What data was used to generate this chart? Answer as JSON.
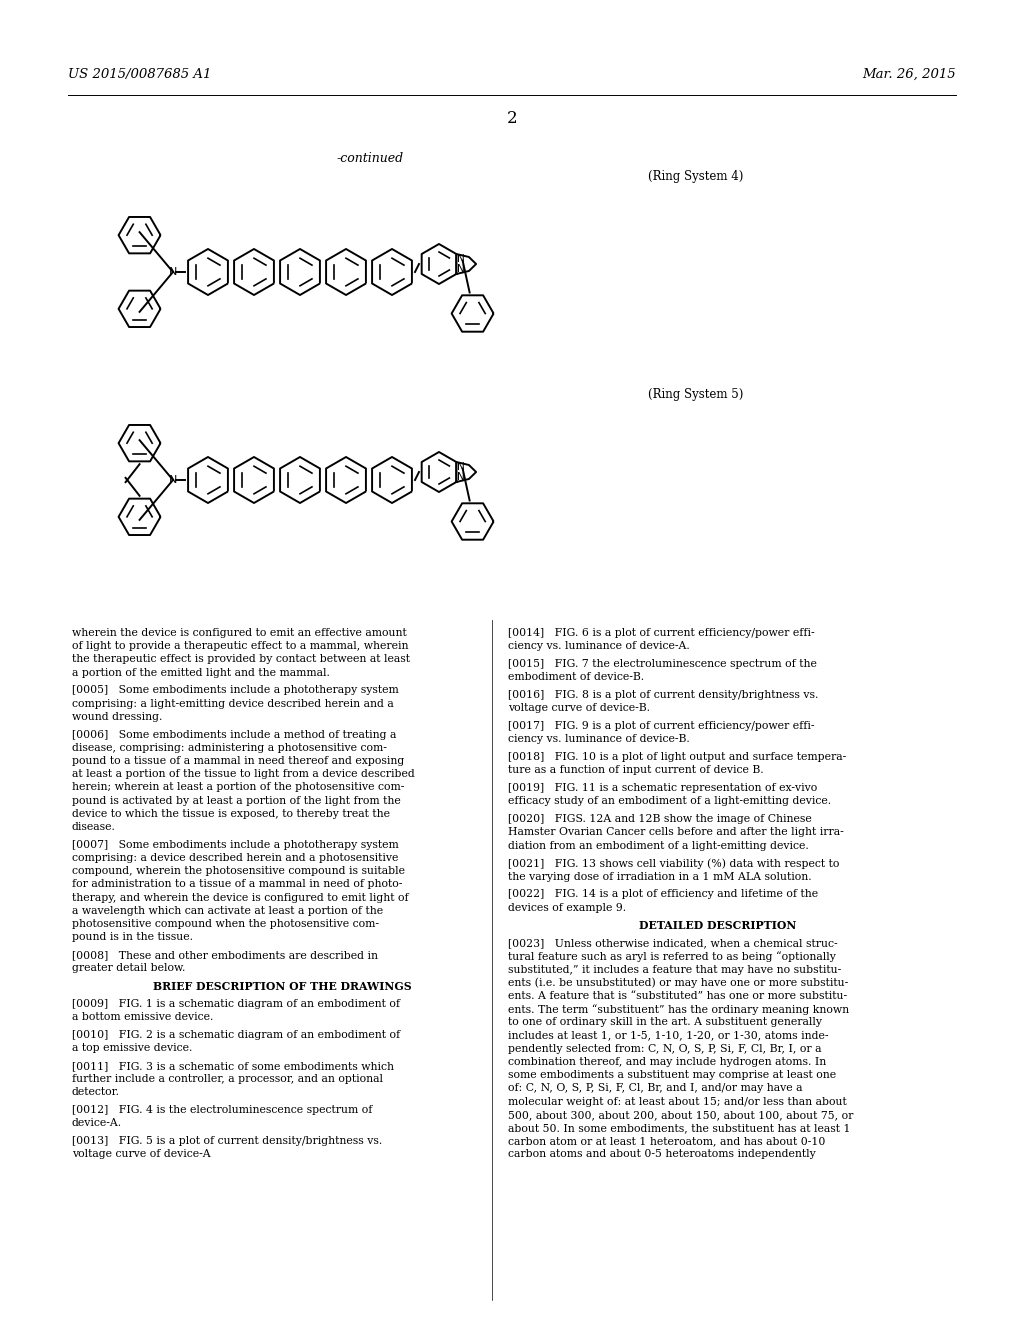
{
  "header_left": "US 2015/0087685 A1",
  "header_right": "Mar. 26, 2015",
  "page_number": "2",
  "continued_label": "-continued",
  "ring_system_4_label": "(Ring System 4)",
  "ring_system_5_label": "(Ring System 5)",
  "background_color": "#ffffff",
  "text_color": "#000000",
  "left_column_text": [
    "wherein the device is configured to emit an effective amount",
    "of light to provide a therapeutic effect to a mammal, wherein",
    "the therapeutic effect is provided by contact between at least",
    "a portion of the emitted light and the mammal.",
    "",
    "[0005]   Some embodiments include a phototherapy system",
    "comprising: a light-emitting device described herein and a",
    "wound dressing.",
    "",
    "[0006]   Some embodiments include a method of treating a",
    "disease, comprising: administering a photosensitive com-",
    "pound to a tissue of a mammal in need thereof and exposing",
    "at least a portion of the tissue to light from a device described",
    "herein; wherein at least a portion of the photosensitive com-",
    "pound is activated by at least a portion of the light from the",
    "device to which the tissue is exposed, to thereby treat the",
    "disease.",
    "",
    "[0007]   Some embodiments include a phototherapy system",
    "comprising: a device described herein and a photosensitive",
    "compound, wherein the photosensitive compound is suitable",
    "for administration to a tissue of a mammal in need of photo-",
    "therapy, and wherein the device is configured to emit light of",
    "a wavelength which can activate at least a portion of the",
    "photosensitive compound when the photosensitive com-",
    "pound is in the tissue.",
    "",
    "[0008]   These and other embodiments are described in",
    "greater detail below.",
    "",
    "BRIEF DESCRIPTION OF THE DRAWINGS",
    "",
    "[0009]   FIG. 1 is a schematic diagram of an embodiment of",
    "a bottom emissive device.",
    "",
    "[0010]   FIG. 2 is a schematic diagram of an embodiment of",
    "a top emissive device.",
    "",
    "[0011]   FIG. 3 is a schematic of some embodiments which",
    "further include a controller, a processor, and an optional",
    "detector.",
    "",
    "[0012]   FIG. 4 is the electroluminescence spectrum of",
    "device-A.",
    "",
    "[0013]   FIG. 5 is a plot of current density/brightness vs.",
    "voltage curve of device-A"
  ],
  "right_column_text": [
    "[0014]   FIG. 6 is a plot of current efficiency/power effi-",
    "ciency vs. luminance of device-A.",
    "",
    "[0015]   FIG. 7 the electroluminescence spectrum of the",
    "embodiment of device-B.",
    "",
    "[0016]   FIG. 8 is a plot of current density/brightness vs.",
    "voltage curve of device-B.",
    "",
    "[0017]   FIG. 9 is a plot of current efficiency/power effi-",
    "ciency vs. luminance of device-B.",
    "",
    "[0018]   FIG. 10 is a plot of light output and surface tempera-",
    "ture as a function of input current of device B.",
    "",
    "[0019]   FIG. 11 is a schematic representation of ex-vivo",
    "efficacy study of an embodiment of a light-emitting device.",
    "",
    "[0020]   FIGS. 12A and 12B show the image of Chinese",
    "Hamster Ovarian Cancer cells before and after the light irra-",
    "diation from an embodiment of a light-emitting device.",
    "",
    "[0021]   FIG. 13 shows cell viability (%) data with respect to",
    "the varying dose of irradiation in a 1 mM ALA solution.",
    "",
    "[0022]   FIG. 14 is a plot of efficiency and lifetime of the",
    "devices of example 9.",
    "",
    "DETAILED DESCRIPTION",
    "",
    "[0023]   Unless otherwise indicated, when a chemical struc-",
    "tural feature such as aryl is referred to as being “optionally",
    "substituted,” it includes a feature that may have no substitu-",
    "ents (i.e. be unsubstituted) or may have one or more substitu-",
    "ents. A feature that is “substituted” has one or more substitu-",
    "ents. The term “substituent” has the ordinary meaning known",
    "to one of ordinary skill in the art. A substituent generally",
    "includes at least 1, or 1-5, 1-10, 1-20, or 1-30, atoms inde-",
    "pendently selected from: C, N, O, S, P, Si, F, Cl, Br, I, or a",
    "combination thereof, and may include hydrogen atoms. In",
    "some embodiments a substituent may comprise at least one",
    "of: C, N, O, S, P, Si, F, Cl, Br, and I, and/or may have a",
    "molecular weight of: at least about 15; and/or less than about",
    "500, about 300, about 200, about 150, about 100, about 75, or",
    "about 50. In some embodiments, the substituent has at least 1",
    "carbon atom or at least 1 heteroatom, and has about 0-10",
    "carbon atoms and about 0-5 heteroatoms independently"
  ]
}
